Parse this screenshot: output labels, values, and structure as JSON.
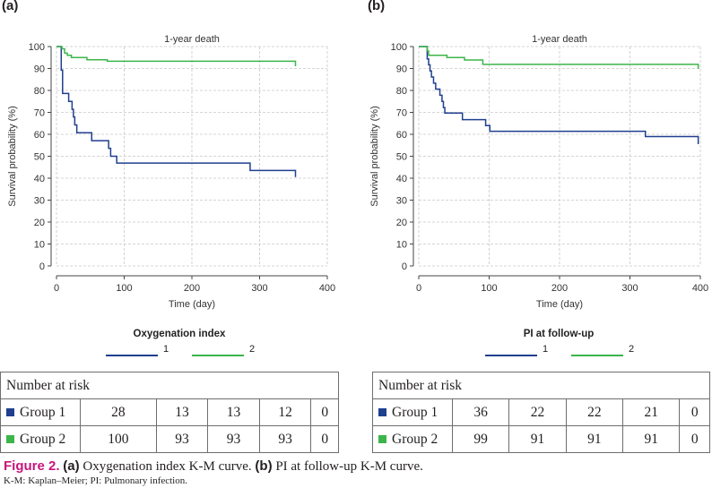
{
  "panels": [
    {
      "label": "(a)",
      "risk_header": "Number at risk",
      "risk_rows": [
        {
          "label": "Group 1",
          "color": "#1f3f8f",
          "values": [
            "28",
            "13",
            "13",
            "12",
            "0"
          ]
        },
        {
          "label": "Group 2",
          "color": "#3cb54a",
          "values": [
            "100",
            "93",
            "93",
            "93",
            "0"
          ]
        }
      ]
    },
    {
      "label": "(b)",
      "risk_header": "Number at risk",
      "risk_rows": [
        {
          "label": "Group 1",
          "color": "#1f3f8f",
          "values": [
            "36",
            "22",
            "22",
            "21",
            "0"
          ]
        },
        {
          "label": "Group 2",
          "color": "#3cb54a",
          "values": [
            "99",
            "91",
            "91",
            "91",
            "0"
          ]
        }
      ]
    }
  ],
  "caption": {
    "figure": "Figure 2.",
    "part_a_label": "(a)",
    "part_a_text": " Oxygenation index K-M curve. ",
    "part_b_label": "(b)",
    "part_b_text": " PI at follow-up K-M curve."
  },
  "footnote": "K-M: Kaplan–Meier; PI: Pulmonary infection.",
  "chart_data": [
    {
      "type": "line",
      "step": true,
      "title": "1-year death",
      "xlabel": "Time (day)",
      "ylabel": "Survival probability (%)",
      "xlim": [
        0,
        400
      ],
      "ylim": [
        0,
        100
      ],
      "xticks": [
        0,
        100,
        200,
        300,
        400
      ],
      "yticks": [
        0,
        10,
        20,
        30,
        40,
        50,
        60,
        70,
        80,
        90,
        100
      ],
      "grid": true,
      "legend_title": "Oxygenation index",
      "series": [
        {
          "name": "1",
          "color": "#1f3f8f",
          "x": [
            0,
            7,
            9,
            18,
            23,
            25,
            27,
            30,
            52,
            77,
            80,
            89,
            286,
            353
          ],
          "y": [
            100,
            89.3,
            78.6,
            75.0,
            71.4,
            67.9,
            64.3,
            60.7,
            57.1,
            53.6,
            50.0,
            46.9,
            43.5,
            40.5
          ]
        },
        {
          "name": "2",
          "color": "#3cb54a",
          "x": [
            0,
            8,
            12,
            16,
            22,
            45,
            75,
            353
          ],
          "y": [
            100,
            99,
            97,
            96,
            95,
            94,
            93.3,
            91
          ]
        }
      ]
    },
    {
      "type": "line",
      "step": true,
      "title": "1-year death",
      "xlabel": "Time (day)",
      "ylabel": "Survival probability (%)",
      "xlim": [
        0,
        400
      ],
      "ylim": [
        0,
        100
      ],
      "xticks": [
        0,
        100,
        200,
        300,
        400
      ],
      "yticks": [
        0,
        10,
        20,
        30,
        40,
        50,
        60,
        70,
        80,
        90,
        100
      ],
      "grid": true,
      "legend_title": "PI at follow-up",
      "series": [
        {
          "name": "1",
          "color": "#1f3f8f",
          "x": [
            0,
            12,
            14,
            16,
            18,
            21,
            24,
            30,
            33,
            35,
            37,
            62,
            95,
            101,
            322,
            397
          ],
          "y": [
            100,
            94.4,
            91.7,
            88.9,
            86.1,
            83.3,
            80.6,
            77.8,
            75.0,
            72.2,
            69.7,
            66.7,
            64.0,
            61.4,
            59.0,
            55.5
          ]
        },
        {
          "name": "2",
          "color": "#3cb54a",
          "x": [
            0,
            12,
            14,
            40,
            65,
            91,
            397
          ],
          "y": [
            100,
            98,
            96,
            95,
            93.9,
            91.9,
            89.9
          ]
        }
      ]
    }
  ]
}
